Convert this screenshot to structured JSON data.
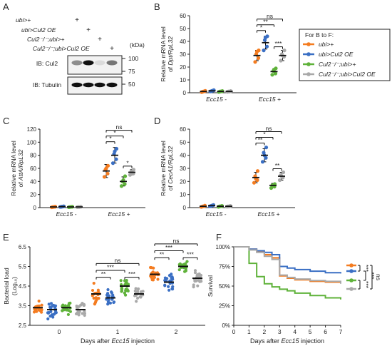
{
  "colors": {
    "orange": "#f47c20",
    "blue": "#3a6fc4",
    "green": "#5fb23a",
    "gray": "#a9a9a9",
    "black": "#111111"
  },
  "genotypes": [
    "ubi>+",
    "ubi>Cul2 OE",
    "Cul2⁻/⁻;ubi>+",
    "Cul2⁻/⁻;ubi>Cul2 OE"
  ],
  "panel_letters": [
    "A",
    "B",
    "C",
    "D",
    "E",
    "F"
  ],
  "panel_a": {
    "plus_signs": [
      "+",
      "+",
      "+",
      "+"
    ],
    "kda_label": "(kDa)",
    "kda_values": [
      "100",
      "75",
      "50"
    ],
    "blot_labels": [
      "IB: Cul2",
      "IB: Tubulin"
    ]
  },
  "legend": {
    "title": "For B to F:"
  },
  "common": {
    "ylabel_prefix": "Relative mRNA level",
    "of": "of",
    "rpl32": "/RpL32",
    "ecc15_minus": "Ecc15 -",
    "ecc15_plus": "Ecc15 +"
  },
  "chart_data": [
    {
      "panel": "B",
      "type": "scatter",
      "gene": "Dpt",
      "ylim": [
        0,
        60
      ],
      "yticks": [
        "0",
        "10",
        "20",
        "30",
        "40",
        "50",
        "60"
      ],
      "groups": [
        "Ecc15 -",
        "Ecc15 +"
      ],
      "means": [
        [
          1,
          1.5,
          1,
          1
        ],
        [
          29,
          39,
          16.5,
          29
        ]
      ],
      "sds": [
        [
          0.5,
          0.5,
          0.4,
          0.5
        ],
        [
          4,
          5,
          2,
          4
        ]
      ],
      "points": [
        [
          [
            0.5,
            1.2,
            0.8,
            1.5,
            1.0
          ],
          [
            1.0,
            1.8,
            1.2,
            2.0,
            1.5
          ],
          [
            0.6,
            1.2,
            0.9,
            1.3,
            1.0
          ],
          [
            0.7,
            1.3,
            1.0,
            1.2,
            0.8
          ]
        ],
        [
          [
            24,
            27,
            30,
            33,
            32
          ],
          [
            33,
            36,
            41,
            44,
            43
          ],
          [
            14,
            15,
            17,
            19,
            18
          ],
          [
            25,
            28,
            30,
            33,
            29
          ]
        ]
      ],
      "significance": [
        "*",
        "**",
        "ns",
        "***"
      ]
    },
    {
      "panel": "C",
      "type": "scatter",
      "gene": "AttA",
      "ylim": [
        0,
        120
      ],
      "yticks": [
        "0",
        "20",
        "40",
        "60",
        "80",
        "100",
        "120"
      ],
      "groups": [
        "Ecc15 -",
        "Ecc15 +"
      ],
      "means": [
        [
          1,
          1.5,
          1,
          1
        ],
        [
          56,
          80,
          40,
          54
        ]
      ],
      "sds": [
        [
          0.5,
          0.5,
          0.4,
          0.5
        ],
        [
          10,
          12,
          7,
          4
        ]
      ],
      "points": [
        [
          [
            0.5,
            1.2,
            0.8,
            1.5,
            1.0
          ],
          [
            1.0,
            1.8,
            1.2,
            2.0,
            1.5
          ],
          [
            0.6,
            1.2,
            0.9,
            1.3,
            1.0
          ],
          [
            0.7,
            1.3,
            1.0,
            1.2,
            0.8
          ]
        ],
        [
          [
            47,
            52,
            58,
            64,
            60
          ],
          [
            68,
            74,
            82,
            90,
            86
          ],
          [
            33,
            36,
            40,
            48,
            42
          ],
          [
            50,
            52,
            55,
            58,
            54
          ]
        ]
      ],
      "significance": [
        "*",
        "*",
        "ns",
        "*"
      ]
    },
    {
      "panel": "D",
      "type": "scatter",
      "gene": "CecA1",
      "ylim": [
        0,
        60
      ],
      "yticks": [
        "0",
        "10",
        "20",
        "30",
        "40",
        "50",
        "60"
      ],
      "groups": [
        "Ecc15 -",
        "Ecc15 +"
      ],
      "means": [
        [
          1,
          1.5,
          1,
          1
        ],
        [
          23,
          40,
          17,
          24
        ]
      ],
      "sds": [
        [
          0.5,
          0.5,
          0.4,
          0.5
        ],
        [
          4,
          5,
          1.5,
          3
        ]
      ],
      "points": [
        [
          [
            0.5,
            1.2,
            0.8,
            1.5,
            1.0
          ],
          [
            1.0,
            1.8,
            1.2,
            2.0,
            1.5
          ],
          [
            0.6,
            1.2,
            0.9,
            1.3,
            1.0
          ],
          [
            0.7,
            1.3,
            1.0,
            1.2,
            0.8
          ]
        ],
        [
          [
            19,
            21,
            24,
            28,
            22
          ],
          [
            35,
            38,
            42,
            46,
            40
          ],
          [
            15,
            16,
            17,
            18,
            17
          ],
          [
            21,
            23,
            25,
            27,
            24
          ]
        ]
      ],
      "significance": [
        "**",
        "*",
        "ns",
        "**"
      ]
    },
    {
      "panel": "E",
      "type": "scatter",
      "ylabel": "Bacterial load",
      "ylabel_units": "(Log₁₀)",
      "xlabel_prefix": "Days after",
      "xlabel_italic": "Ecc15",
      "xlabel_suffix": "injection",
      "ylim": [
        2.5,
        6.5
      ],
      "yticks": [
        "2.5",
        "3.5",
        "4.5",
        "5.5",
        "6.5"
      ],
      "categories": [
        "0",
        "1",
        "2"
      ],
      "means": [
        [
          3.4,
          3.3,
          3.4,
          3.3
        ],
        [
          4.1,
          3.9,
          4.5,
          4.1
        ],
        [
          5.1,
          4.7,
          5.5,
          4.9
        ]
      ],
      "spread": [
        [
          0.25,
          0.3,
          0.25,
          0.3
        ],
        [
          0.35,
          0.3,
          0.3,
          0.3
        ],
        [
          0.3,
          0.3,
          0.2,
          0.3
        ]
      ],
      "significance_day1": [
        "**",
        "***",
        "ns",
        "***"
      ],
      "significance_day2": [
        "**",
        "***",
        "ns",
        "***"
      ]
    },
    {
      "panel": "F",
      "type": "line",
      "ylabel": "Survival",
      "xlabel_prefix": "Days after",
      "xlabel_italic": "Ecc15",
      "xlabel_suffix": "injection",
      "xlim": [
        0,
        7
      ],
      "ylim": [
        0,
        100
      ],
      "xticks": [
        "0",
        "1",
        "2",
        "3",
        "4",
        "5",
        "6",
        "7"
      ],
      "yticks": [
        "0%",
        "25%",
        "50%",
        "75%",
        "100%"
      ],
      "series": [
        {
          "color_key": "orange",
          "x": [
            0,
            1,
            1.5,
            2,
            2.5,
            3,
            3.5,
            4,
            5,
            6,
            7
          ],
          "y": [
            100,
            97,
            94,
            90,
            86,
            63,
            60,
            58,
            56,
            55,
            54
          ]
        },
        {
          "color_key": "blue",
          "x": [
            0,
            1,
            1.5,
            2,
            2.5,
            3,
            3.5,
            4,
            5,
            6,
            7
          ],
          "y": [
            100,
            97,
            95,
            93,
            90,
            75,
            73,
            71,
            69,
            67,
            66
          ]
        },
        {
          "color_key": "green",
          "x": [
            0,
            1,
            1.5,
            2,
            2.5,
            3,
            3.5,
            4,
            5,
            6,
            7
          ],
          "y": [
            100,
            79,
            62,
            53,
            49,
            46,
            44,
            41,
            38,
            35,
            33
          ]
        },
        {
          "color_key": "gray",
          "x": [
            0,
            1,
            1.5,
            2,
            2.5,
            3,
            3.5,
            4,
            5,
            6,
            7
          ],
          "y": [
            100,
            96,
            93,
            88,
            84,
            64,
            61,
            59,
            57,
            56,
            53
          ]
        }
      ],
      "significance": [
        "***",
        "***",
        "***",
        "ns"
      ]
    }
  ]
}
